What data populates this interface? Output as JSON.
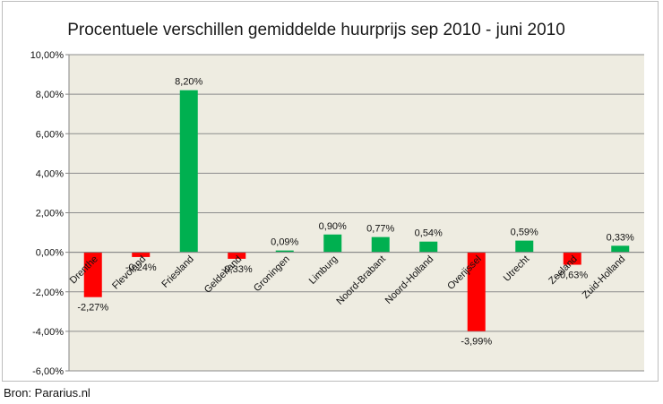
{
  "chart_data": {
    "type": "bar",
    "title": "Procentuele verschillen gemiddelde huurprijs sep 2010 - juni 2010",
    "xlabel": "",
    "ylabel": "",
    "ylim": [
      -6,
      10
    ],
    "yticks": [
      10,
      8,
      6,
      4,
      2,
      0,
      -2,
      -4,
      -6
    ],
    "ytick_labels": [
      "10,00%",
      "8,00%",
      "6,00%",
      "4,00%",
      "2,00%",
      "0,00%",
      "-2,00%",
      "-4,00%",
      "-6,00%"
    ],
    "categories": [
      "Drenthe",
      "Flevoland",
      "Friesland",
      "Gelderland",
      "Groningen",
      "Limburg",
      "Noord-Brabant",
      "Noord-Holland",
      "Overijssel",
      "Utrecht",
      "Zeeland",
      "Zuid-Holland"
    ],
    "values": [
      -2.27,
      -0.24,
      8.2,
      -0.33,
      0.09,
      0.9,
      0.77,
      0.54,
      -3.99,
      0.59,
      -0.63,
      0.33
    ],
    "data_labels": [
      "-2,27%",
      "-0,24%",
      "8,20%",
      "-0,33%",
      "0,09%",
      "0,90%",
      "0,77%",
      "0,54%",
      "-3,99%",
      "0,59%",
      "-0,63%",
      "0,33%"
    ],
    "grid": true,
    "legend": "none",
    "colors": {
      "positive": "#00b050",
      "negative": "#ff0000",
      "plot_background": "#eeece1",
      "gridline": "#8c8c8c"
    }
  },
  "source": "Bron: Pararius.nl"
}
